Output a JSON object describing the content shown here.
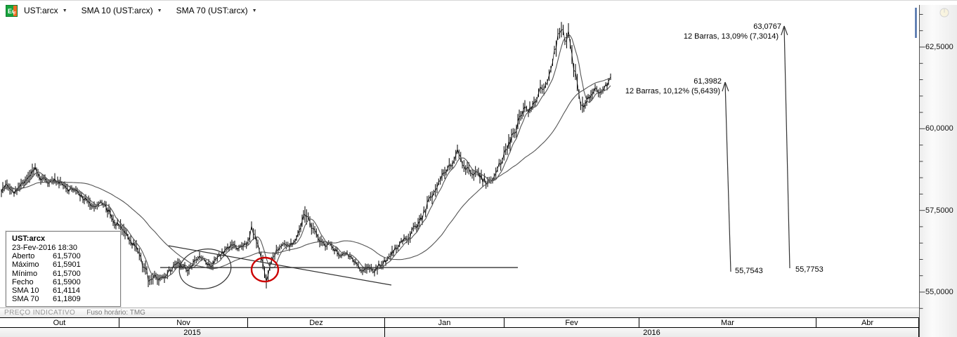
{
  "toolbar": {
    "icon_text": "Eq",
    "caret": "▼",
    "items": [
      "UST:arcx",
      "SMA 10 (UST:arcx)",
      "SMA 70 (UST:arcx)"
    ]
  },
  "y_axis": {
    "labels": [
      "62,5000",
      "60,0000",
      "57,5000",
      "55,0000"
    ]
  },
  "x_axis": {
    "months": [
      "Out",
      "Nov",
      "Dez",
      "Jan",
      "Fev",
      "Mar",
      "Abr"
    ],
    "years": [
      "2015",
      "2016"
    ]
  },
  "measure_labels": {
    "top": {
      "target": "63,0767",
      "note": "12 Barras, 13,09% (7,3014)",
      "base": "55,7753"
    },
    "mid": {
      "target": "61,3982",
      "note": "12 Barras, 10,12% (5,6439)",
      "base": "55,7543"
    }
  },
  "tooltip": {
    "title": "UST:arcx",
    "datetime": "23-Fev-2016 18:30",
    "rows": [
      {
        "label": "Aberto",
        "value": "61,5700"
      },
      {
        "label": "Máximo",
        "value": "61,5901"
      },
      {
        "label": "Mínimo",
        "value": "61,5700"
      },
      {
        "label": "Fecho",
        "value": "61,5900"
      },
      {
        "label": "SMA 10",
        "value": "61,4114"
      },
      {
        "label": "SMA 70",
        "value": "61,1809"
      }
    ]
  },
  "status_bar": {
    "left": "PREÇO INDICATIVO",
    "timezone": "Fuso horário: TMG"
  },
  "colors": {
    "annotation_red": "#cc0000",
    "series_black": "#000000",
    "sma_gray": "#555555",
    "range_indicator_blue": "#4a6da8"
  },
  "chart_data": {
    "type": "ohlc",
    "symbol": "UST:arcx",
    "interval": "hourly",
    "overlays": [
      "SMA 10",
      "SMA 70"
    ],
    "y_axis_side": "right",
    "y_major_ticks": [
      55.0,
      57.5,
      60.0,
      62.5
    ],
    "y_minor_step": 0.5,
    "x_months": [
      "Out",
      "Nov",
      "Dez",
      "Jan",
      "Fev",
      "Mar",
      "Abr"
    ],
    "x_years": [
      "2015",
      "2016"
    ],
    "support_level": 55.75,
    "last_bar": {
      "date": "23-Fev-2016 18:30",
      "open": 61.57,
      "high": 61.5901,
      "low": 61.57,
      "close": 61.59,
      "sma10": 61.4114,
      "sma70": 61.1809
    },
    "measurements": [
      {
        "bars": 12,
        "pct": 10.12,
        "change": 5.6439,
        "from": 55.7543,
        "to": 61.3982
      },
      {
        "bars": 12,
        "pct": 13.09,
        "change": 7.3014,
        "from": 55.7753,
        "to": 63.0767
      }
    ],
    "series_format": "[x_px_on_time_axis, close_price, high_low_range]",
    "series": [
      [
        2,
        58.1,
        0.25
      ],
      [
        10,
        58.3,
        0.3
      ],
      [
        20,
        58.05,
        0.2
      ],
      [
        30,
        58.3,
        0.25
      ],
      [
        40,
        58.55,
        0.3
      ],
      [
        50,
        58.85,
        0.35
      ],
      [
        58,
        58.5,
        0.3
      ],
      [
        68,
        58.35,
        0.2
      ],
      [
        78,
        58.4,
        0.25
      ],
      [
        88,
        58.35,
        0.2
      ],
      [
        96,
        58.1,
        0.25
      ],
      [
        106,
        58.15,
        0.2
      ],
      [
        116,
        57.95,
        0.25
      ],
      [
        126,
        57.75,
        0.3
      ],
      [
        136,
        57.65,
        0.25
      ],
      [
        145,
        57.8,
        0.2
      ],
      [
        155,
        57.45,
        0.3
      ],
      [
        165,
        57.1,
        0.3
      ],
      [
        176,
        56.85,
        0.3
      ],
      [
        186,
        56.55,
        0.3
      ],
      [
        196,
        56.25,
        0.35
      ],
      [
        205,
        55.75,
        0.4
      ],
      [
        213,
        55.35,
        0.45
      ],
      [
        220,
        55.55,
        0.3
      ],
      [
        228,
        55.4,
        0.3
      ],
      [
        236,
        55.55,
        0.25
      ],
      [
        245,
        55.75,
        0.25
      ],
      [
        253,
        55.9,
        0.25
      ],
      [
        261,
        55.8,
        0.2
      ],
      [
        269,
        55.65,
        0.25
      ],
      [
        277,
        55.95,
        0.3
      ],
      [
        284,
        56.12,
        0.25
      ],
      [
        291,
        55.93,
        0.2
      ],
      [
        299,
        55.76,
        0.25
      ],
      [
        307,
        55.96,
        0.2
      ],
      [
        314,
        56.17,
        0.25
      ],
      [
        322,
        56.28,
        0.2
      ],
      [
        330,
        56.44,
        0.25
      ],
      [
        338,
        56.35,
        0.2
      ],
      [
        346,
        56.42,
        0.2
      ],
      [
        353,
        56.55,
        0.25
      ],
      [
        358,
        56.95,
        0.35
      ],
      [
        363,
        56.7,
        0.3
      ],
      [
        369,
        56.28,
        0.3
      ],
      [
        374,
        55.95,
        0.35
      ],
      [
        379,
        55.33,
        0.5
      ],
      [
        384,
        55.88,
        0.35
      ],
      [
        391,
        56.18,
        0.25
      ],
      [
        398,
        56.35,
        0.2
      ],
      [
        405,
        56.5,
        0.2
      ],
      [
        412,
        56.4,
        0.2
      ],
      [
        420,
        56.58,
        0.25
      ],
      [
        428,
        57.05,
        0.35
      ],
      [
        434,
        57.45,
        0.4
      ],
      [
        441,
        57.12,
        0.3
      ],
      [
        448,
        56.83,
        0.25
      ],
      [
        455,
        56.6,
        0.25
      ],
      [
        463,
        56.4,
        0.2
      ],
      [
        470,
        56.5,
        0.2
      ],
      [
        478,
        56.28,
        0.25
      ],
      [
        486,
        56.06,
        0.25
      ],
      [
        494,
        56.18,
        0.2
      ],
      [
        502,
        55.96,
        0.2
      ],
      [
        510,
        55.8,
        0.2
      ],
      [
        518,
        55.62,
        0.25
      ],
      [
        526,
        55.76,
        0.2
      ],
      [
        533,
        55.65,
        0.2
      ],
      [
        541,
        55.85,
        0.25
      ],
      [
        549,
        55.96,
        0.2
      ],
      [
        556,
        56.13,
        0.25
      ],
      [
        564,
        56.34,
        0.25
      ],
      [
        571,
        56.5,
        0.25
      ],
      [
        579,
        56.65,
        0.25
      ],
      [
        586,
        56.82,
        0.3
      ],
      [
        593,
        57.03,
        0.3
      ],
      [
        601,
        57.28,
        0.35
      ],
      [
        608,
        57.68,
        0.4
      ],
      [
        615,
        58.0,
        0.35
      ],
      [
        622,
        58.28,
        0.3
      ],
      [
        629,
        58.54,
        0.35
      ],
      [
        637,
        58.75,
        0.3
      ],
      [
        644,
        58.97,
        0.35
      ],
      [
        651,
        59.25,
        0.4
      ],
      [
        658,
        59.0,
        0.35
      ],
      [
        665,
        58.75,
        0.3
      ],
      [
        672,
        58.55,
        0.3
      ],
      [
        679,
        58.65,
        0.25
      ],
      [
        687,
        58.45,
        0.3
      ],
      [
        694,
        58.3,
        0.3
      ],
      [
        701,
        58.45,
        0.25
      ],
      [
        708,
        58.75,
        0.3
      ],
      [
        715,
        59.08,
        0.35
      ],
      [
        722,
        59.4,
        0.35
      ],
      [
        728,
        59.72,
        0.4
      ],
      [
        735,
        60.05,
        0.4
      ],
      [
        741,
        60.45,
        0.45
      ],
      [
        747,
        60.7,
        0.4
      ],
      [
        752,
        60.5,
        0.3
      ],
      [
        758,
        60.73,
        0.3
      ],
      [
        764,
        61.0,
        0.35
      ],
      [
        769,
        61.3,
        0.35
      ],
      [
        774,
        61.12,
        0.3
      ],
      [
        779,
        61.38,
        0.3
      ],
      [
        784,
        61.75,
        0.4
      ],
      [
        789,
        62.3,
        0.45
      ],
      [
        794,
        62.85,
        0.45
      ],
      [
        799,
        63.05,
        0.4
      ],
      [
        804,
        62.75,
        0.4
      ],
      [
        809,
        62.9,
        0.35
      ],
      [
        814,
        62.3,
        0.45
      ],
      [
        819,
        61.6,
        0.45
      ],
      [
        824,
        60.95,
        0.4
      ],
      [
        829,
        60.6,
        0.4
      ],
      [
        835,
        60.82,
        0.3
      ],
      [
        841,
        61.1,
        0.3
      ],
      [
        847,
        61.25,
        0.25
      ],
      [
        854,
        61.1,
        0.25
      ],
      [
        860,
        61.25,
        0.2
      ],
      [
        866,
        61.4,
        0.25
      ],
      [
        869,
        61.59,
        0.2
      ]
    ]
  }
}
